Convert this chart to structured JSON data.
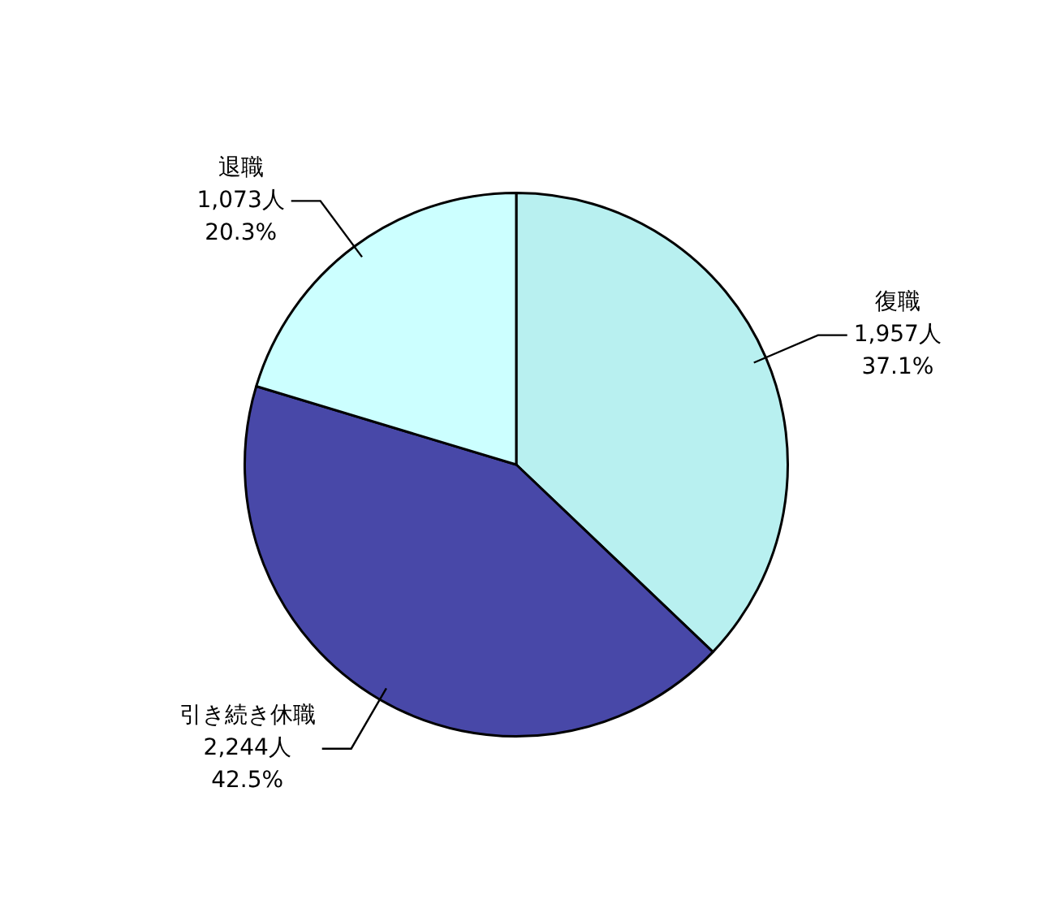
{
  "chart_data": {
    "type": "pie",
    "categories": [
      "復職",
      "引き続き休職",
      "退職"
    ],
    "values": [
      1957,
      2244,
      1073
    ],
    "colors": [
      "#b8f0f0",
      "#4848a8",
      "#ccffff"
    ],
    "value_labels": [
      "1,957人\n37.1%",
      "2,244人\n42.5%",
      "1,073人\n20.3%"
    ],
    "legend": false
  }
}
